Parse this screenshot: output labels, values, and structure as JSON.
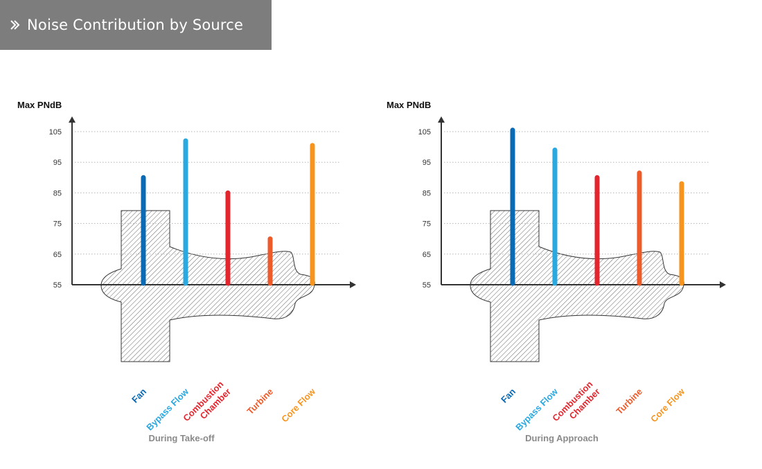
{
  "header": {
    "title": "Noise Contribution by Source",
    "icon": "double-chevron-right-icon"
  },
  "chart_data": [
    {
      "type": "bar",
      "title": "During Take-off",
      "ylabel": "Max PNdB",
      "ylim": [
        55,
        105
      ],
      "yticks": [
        55,
        65,
        75,
        85,
        95,
        105
      ],
      "categories": [
        "Fan",
        "Bypass Flow",
        "Combustion Chamber",
        "Turbine",
        "Core Flow"
      ],
      "category_lines": [
        [
          "Fan"
        ],
        [
          "Bypass Flow"
        ],
        [
          "Combustion",
          "Chamber"
        ],
        [
          "Turbine"
        ],
        [
          "Core Flow"
        ]
      ],
      "values": [
        90,
        102,
        85,
        70,
        100.5
      ],
      "colors": [
        "#0a6ab3",
        "#2aa8e0",
        "#e3262e",
        "#ee5b2b",
        "#f7941e"
      ],
      "grid": true
    },
    {
      "type": "bar",
      "title": "During Approach",
      "ylabel": "Max PNdB",
      "ylim": [
        55,
        105
      ],
      "yticks": [
        55,
        65,
        75,
        85,
        95,
        105
      ],
      "categories": [
        "Fan",
        "Bypass Flow",
        "Combustion Chamber",
        "Turbine",
        "Core Flow"
      ],
      "category_lines": [
        [
          "Fan"
        ],
        [
          "Bypass Flow"
        ],
        [
          "Combustion",
          "Chamber"
        ],
        [
          "Turbine"
        ],
        [
          "Core Flow"
        ]
      ],
      "values": [
        105.5,
        99,
        90,
        91.5,
        88
      ],
      "colors": [
        "#0a6ab3",
        "#2aa8e0",
        "#e3262e",
        "#ee5b2b",
        "#f7941e"
      ],
      "grid": true
    }
  ]
}
